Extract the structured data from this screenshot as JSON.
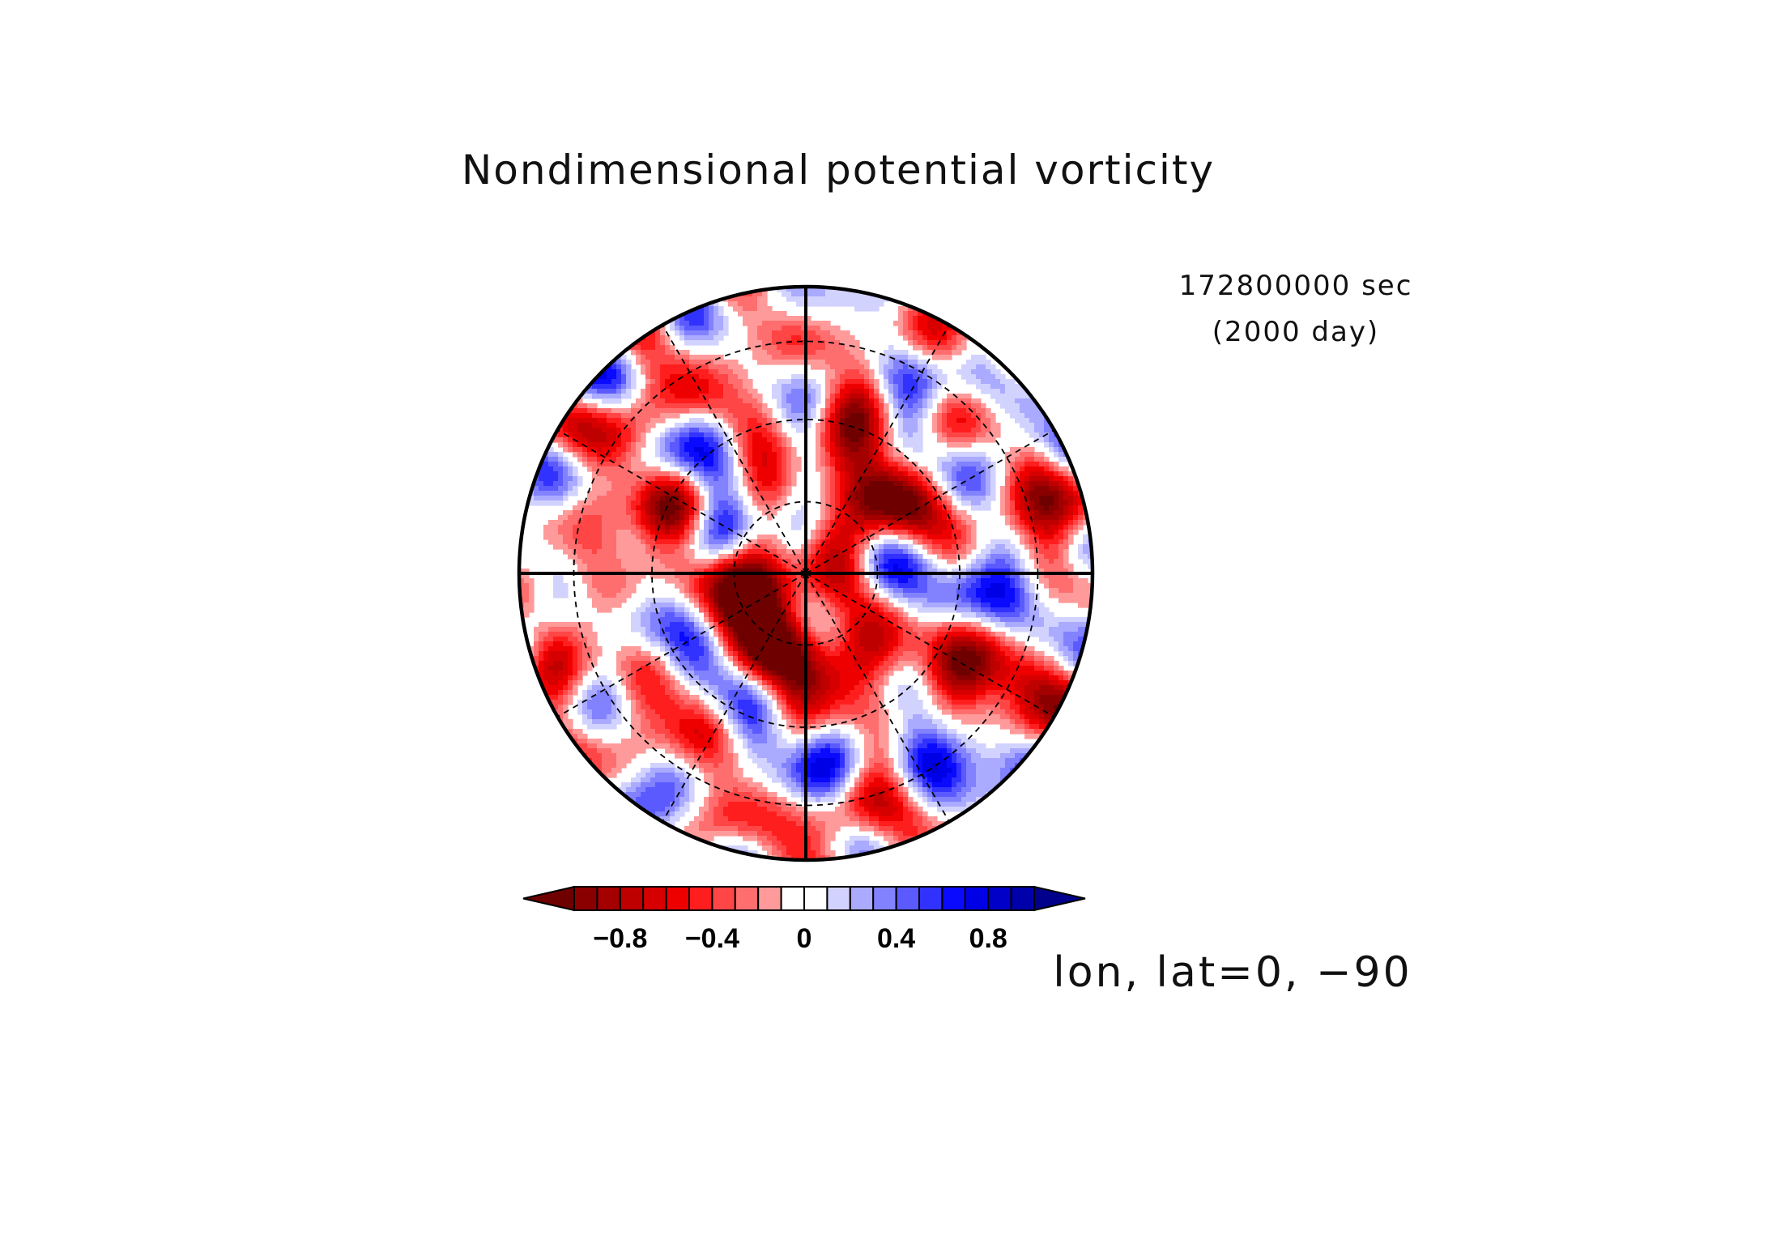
{
  "figure": {
    "title": "Nondimensional potential vorticity",
    "time_seconds": "172800000 sec",
    "time_days": "(2000 day)",
    "axis_label": "lon, lat=0, −90"
  },
  "map": {
    "projection": "polar stereographic (south pole centered)",
    "grid": "dashed",
    "latitude_circles_count": 3,
    "meridian_spokes_count": 12
  },
  "colorbar": {
    "tick_labels": [
      "−0.8",
      "−0.4",
      "0",
      "0.4",
      "0.8"
    ],
    "tick_values": [
      -0.8,
      -0.4,
      0,
      0.4,
      0.8
    ],
    "min": -1.0,
    "max": 1.0,
    "step": 0.1,
    "colors": [
      "#6e0000",
      "#8a0000",
      "#a50000",
      "#be0000",
      "#d70000",
      "#ee0000",
      "#ff1e1e",
      "#ff4646",
      "#ff6e6e",
      "#ff9a9a",
      "#ffffff",
      "#ffffff",
      "#d2d2ff",
      "#aaaaff",
      "#8282ff",
      "#5a5aff",
      "#3232ff",
      "#0a0aff",
      "#0000e6",
      "#0000c8",
      "#0000aa",
      "#00008c"
    ],
    "under_color": "#6e0000",
    "over_color": "#00008c"
  }
}
